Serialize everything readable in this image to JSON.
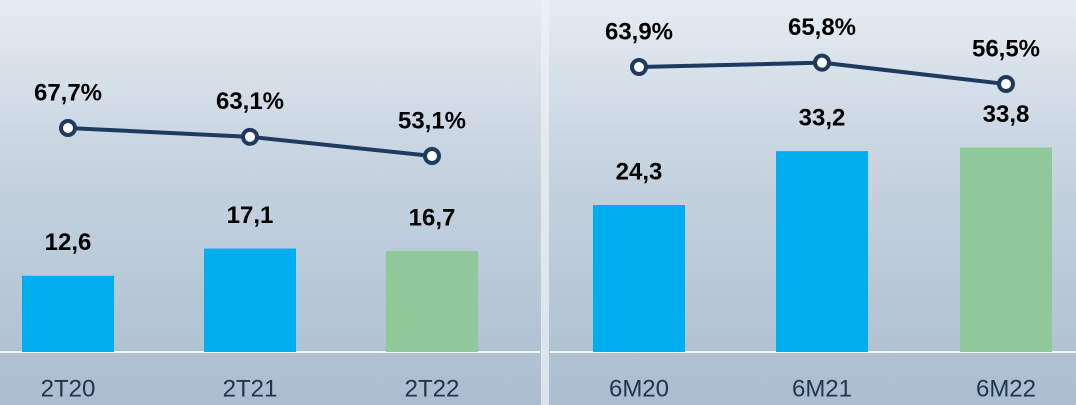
{
  "chart_data": [
    {
      "type": "bar",
      "categories": [
        "2T20",
        "2T21",
        "2T22"
      ],
      "values": [
        12.6,
        17.1,
        16.7
      ],
      "value_labels": [
        "12,6",
        "17,1",
        "16,7"
      ],
      "colors": [
        "#00aeef",
        "#00aeef",
        "#8fc89a"
      ],
      "line": {
        "values": [
          67.7,
          63.1,
          53.1
        ],
        "value_labels": [
          "67,7%",
          "63,1%",
          "53,1%"
        ],
        "color": "#1f3a5f"
      }
    },
    {
      "type": "bar",
      "categories": [
        "6M20",
        "6M21",
        "6M22"
      ],
      "values": [
        24.3,
        33.2,
        33.8
      ],
      "value_labels": [
        "24,3",
        "33,2",
        "33,8"
      ],
      "colors": [
        "#00aeef",
        "#00aeef",
        "#8fc89a"
      ],
      "line": {
        "values": [
          63.9,
          65.8,
          56.5
        ],
        "value_labels": [
          "63,9%",
          "65,8%",
          "56,5%"
        ],
        "color": "#1f3a5f"
      }
    }
  ]
}
